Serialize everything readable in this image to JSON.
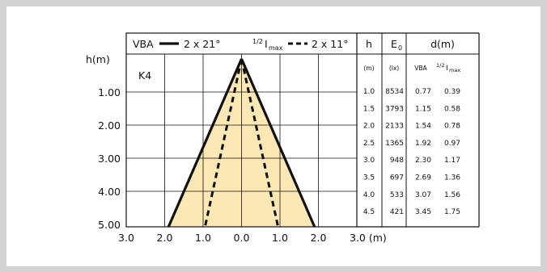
{
  "legend": {
    "vba_label": "VBA",
    "vba_value": "2 x 21°",
    "half_label_prefix": "1/2",
    "half_label_main": "I",
    "half_label_sub": "max",
    "half_value": "2 x 11°"
  },
  "lamp_code": "K4",
  "y_axis": {
    "unit_label": "h(m)",
    "ticks": [
      "1.00",
      "2.00",
      "3.00",
      "4.00",
      "5.00"
    ]
  },
  "x_axis": {
    "ticks": [
      "3.0",
      "2.0",
      "1.0",
      "0.0",
      "1.0",
      "2.0",
      "3.0 (m)"
    ]
  },
  "table": {
    "headers": {
      "h": "h",
      "e0": "E",
      "e0_sub": "0",
      "d": "d(m)",
      "h_unit": "(m)",
      "e0_unit": "(lx)",
      "d_vba": "VBA",
      "d_half_prefix": "1/2",
      "d_half_main": "I",
      "d_half_sub": "max"
    },
    "rows": [
      {
        "h": "1.0",
        "e0": "8534",
        "vba": "0.77",
        "half": "0.39"
      },
      {
        "h": "1.5",
        "e0": "3793",
        "vba": "1.15",
        "half": "0.58"
      },
      {
        "h": "2.0",
        "e0": "2133",
        "vba": "1.54",
        "half": "0.78"
      },
      {
        "h": "2.5",
        "e0": "1365",
        "vba": "1.92",
        "half": "0.97"
      },
      {
        "h": "3.0",
        "e0": "948",
        "vba": "2.30",
        "half": "1.17"
      },
      {
        "h": "3.5",
        "e0": "697",
        "vba": "2.69",
        "half": "1.36"
      },
      {
        "h": "4.0",
        "e0": "533",
        "vba": "3.07",
        "half": "1.56"
      },
      {
        "h": "4.5",
        "e0": "421",
        "vba": "3.45",
        "half": "1.75"
      }
    ]
  },
  "beam": {
    "vba_half_width_at_5m": 1.9,
    "half_max_half_width_at_5m": 0.95,
    "fill_color": "#fbe8b4",
    "line_color": "#111111"
  }
}
